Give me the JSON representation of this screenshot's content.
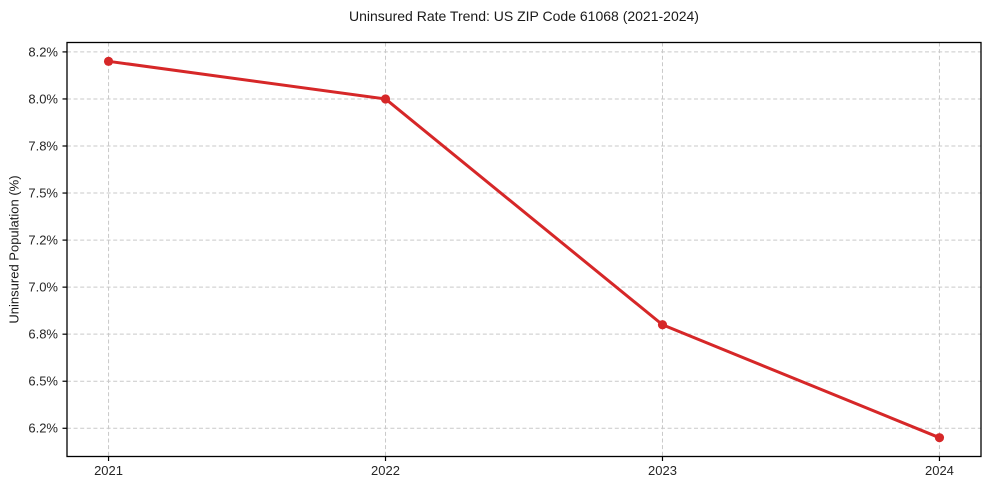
{
  "chart_data": {
    "type": "line",
    "title": "Uninsured Rate Trend: US ZIP Code 61068 (2021-2024)",
    "xlabel": "",
    "ylabel": "Uninsured Population (%)",
    "x": [
      2021,
      2022,
      2023,
      2024
    ],
    "series": [
      {
        "name": "Uninsured rate",
        "values": [
          8.2,
          8.0,
          6.8,
          6.2
        ]
      }
    ],
    "xlim": [
      2020.85,
      2024.15
    ],
    "ylim": [
      6.1,
      8.3
    ],
    "xticks": [
      {
        "value": 2021,
        "label": "2021"
      },
      {
        "value": 2022,
        "label": "2022"
      },
      {
        "value": 2023,
        "label": "2023"
      },
      {
        "value": 2024,
        "label": "2024"
      }
    ],
    "yticks": [
      {
        "value": 8.25,
        "label": "8.2%"
      },
      {
        "value": 8.0,
        "label": "8.0%"
      },
      {
        "value": 7.75,
        "label": "7.8%"
      },
      {
        "value": 7.5,
        "label": "7.5%"
      },
      {
        "value": 7.25,
        "label": "7.2%"
      },
      {
        "value": 7.0,
        "label": "7.0%"
      },
      {
        "value": 6.75,
        "label": "6.8%"
      },
      {
        "value": 6.5,
        "label": "6.5%"
      },
      {
        "value": 6.25,
        "label": "6.2%"
      }
    ],
    "grid": true,
    "grid_style": "dashed",
    "legend": "none",
    "colors": {
      "line": "#d62728",
      "marker": "#d62728",
      "grid": "#c9c9c9",
      "spine": "#000000",
      "tick_label": "#262626",
      "title": "#1a1a1a",
      "background": "#ffffff"
    }
  }
}
